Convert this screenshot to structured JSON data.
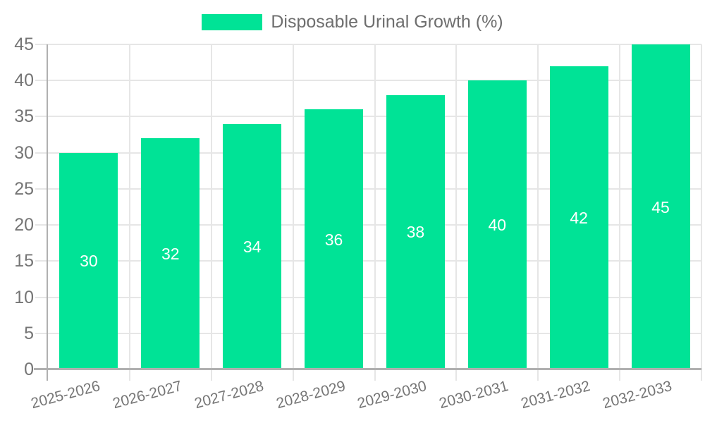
{
  "legend": {
    "label": "Disposable Urinal Growth (%)"
  },
  "chart_data": {
    "type": "bar",
    "title": "Disposable Urinal Growth (%)",
    "categories": [
      "2025-2026",
      "2026-2027",
      "2027-2028",
      "2028-2029",
      "2029-2030",
      "2030-2031",
      "2031-2032",
      "2032-2033"
    ],
    "values": [
      30,
      32,
      34,
      36,
      38,
      40,
      42,
      45
    ],
    "series": [
      {
        "name": "Disposable Urinal Growth (%)",
        "values": [
          30,
          32,
          34,
          36,
          38,
          40,
          42,
          45
        ]
      }
    ],
    "data_labels": [
      "30",
      "32",
      "34",
      "36",
      "38",
      "40",
      "42",
      "45"
    ],
    "xlabel": "",
    "ylabel": "",
    "ylim": [
      0,
      45
    ],
    "yticks": [
      0,
      5,
      10,
      15,
      20,
      25,
      30,
      35,
      40,
      45
    ],
    "grid": true,
    "legend_position": "top",
    "x_label_rotation": -15
  },
  "colors": {
    "bar": "#00E396",
    "grid": "#e6e6e6",
    "axis": "#b0b0b0",
    "tick_text": "#757575",
    "legend_text": "#6e6e6e",
    "data_label": "#ffffff",
    "background": "#ffffff"
  }
}
